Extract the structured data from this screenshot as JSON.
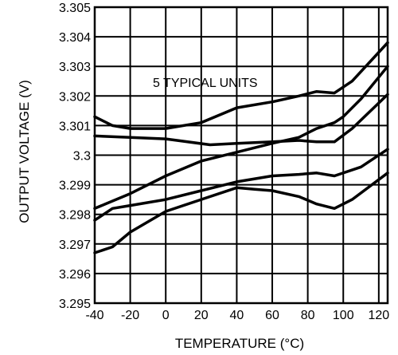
{
  "chart_data": {
    "type": "line",
    "title": "",
    "xlabel": "TEMPERATURE (°C)",
    "ylabel": "OUTPUT VOLTAGE (V)",
    "xlim": [
      -40,
      125
    ],
    "ylim": [
      3.295,
      3.305
    ],
    "x_ticks": [
      -40,
      -20,
      0,
      20,
      40,
      60,
      80,
      100,
      120
    ],
    "x_tick_labels": [
      "-40",
      "-20",
      "0",
      "20",
      "40",
      "60",
      "80",
      "100",
      "120"
    ],
    "y_ticks": [
      3.295,
      3.296,
      3.297,
      3.298,
      3.299,
      3.3,
      3.301,
      3.302,
      3.303,
      3.304,
      3.305
    ],
    "y_tick_labels": [
      "3.295",
      "3.296",
      "3.297",
      "3.298",
      "3.299",
      "3.3",
      "3.301",
      "3.302",
      "3.303",
      "3.304",
      "3.305"
    ],
    "grid": true,
    "annotation": "5 TYPICAL UNITS",
    "series": [
      {
        "x": [
          -40,
          -30,
          -20,
          0,
          20,
          40,
          60,
          75,
          85,
          95,
          105,
          125
        ],
        "y": [
          3.3013,
          3.301,
          3.3009,
          3.3009,
          3.3011,
          3.3016,
          3.3018,
          3.302,
          3.30215,
          3.3021,
          3.3025,
          3.3038
        ]
      },
      {
        "x": [
          -40,
          -20,
          0,
          25,
          40,
          60,
          75,
          85,
          95,
          105,
          125
        ],
        "y": [
          3.30065,
          3.3006,
          3.30055,
          3.30035,
          3.3004,
          3.30045,
          3.3005,
          3.30045,
          3.30045,
          3.3009,
          3.30205
        ]
      },
      {
        "x": [
          -40,
          -20,
          0,
          20,
          40,
          60,
          75,
          85,
          95,
          100,
          110,
          125
        ],
        "y": [
          3.2982,
          3.2987,
          3.2993,
          3.2998,
          3.3001,
          3.3004,
          3.3006,
          3.3009,
          3.3011,
          3.3013,
          3.3019,
          3.303
        ]
      },
      {
        "x": [
          -40,
          -30,
          -20,
          0,
          20,
          40,
          60,
          75,
          85,
          95,
          110,
          125
        ],
        "y": [
          3.2978,
          3.2982,
          3.2983,
          3.2985,
          3.2988,
          3.2991,
          3.2993,
          3.29935,
          3.2994,
          3.2993,
          3.2996,
          3.3002
        ]
      },
      {
        "x": [
          -40,
          -30,
          -20,
          0,
          20,
          40,
          50,
          60,
          75,
          85,
          95,
          105,
          125
        ],
        "y": [
          3.2967,
          3.2969,
          3.2974,
          3.2981,
          3.2985,
          3.2989,
          3.29885,
          3.2988,
          3.2986,
          3.29835,
          3.2982,
          3.2985,
          3.2994
        ]
      }
    ]
  }
}
